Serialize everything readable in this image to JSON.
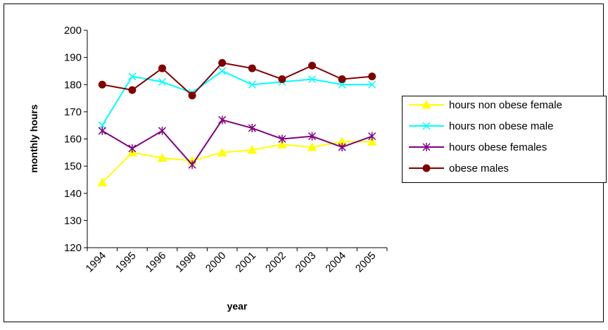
{
  "chart_data": {
    "type": "line",
    "title": "",
    "xlabel": "year",
    "ylabel": "monthly hours",
    "x": [
      "1994",
      "1995",
      "1996",
      "1998",
      "2000",
      "2001",
      "2002",
      "2003",
      "2004",
      "2005"
    ],
    "ylim": [
      120,
      200
    ],
    "yticks": [
      "120",
      "130",
      "140",
      "150",
      "160",
      "170",
      "180",
      "190",
      "200"
    ],
    "grid": false,
    "legend_position": "right",
    "series": [
      {
        "name": "hours non obese female",
        "color": "#ffff00",
        "marker": "triangle",
        "values": [
          144,
          155,
          153,
          152,
          155,
          156,
          158,
          157,
          159,
          159
        ]
      },
      {
        "name": "hours non obese male",
        "color": "#00ffff",
        "marker": "x",
        "values": [
          165,
          183,
          181,
          177,
          185,
          180,
          181,
          182,
          180,
          180
        ]
      },
      {
        "name": "hours obese females",
        "color": "#800080",
        "marker": "asterisk",
        "values": [
          163,
          156.5,
          163,
          150.5,
          167,
          164,
          160,
          161,
          157,
          161
        ]
      },
      {
        "name": "obese males",
        "color": "#800000",
        "marker": "circle",
        "values": [
          180,
          178,
          186,
          176,
          188,
          186,
          182,
          187,
          182,
          183
        ]
      }
    ]
  }
}
